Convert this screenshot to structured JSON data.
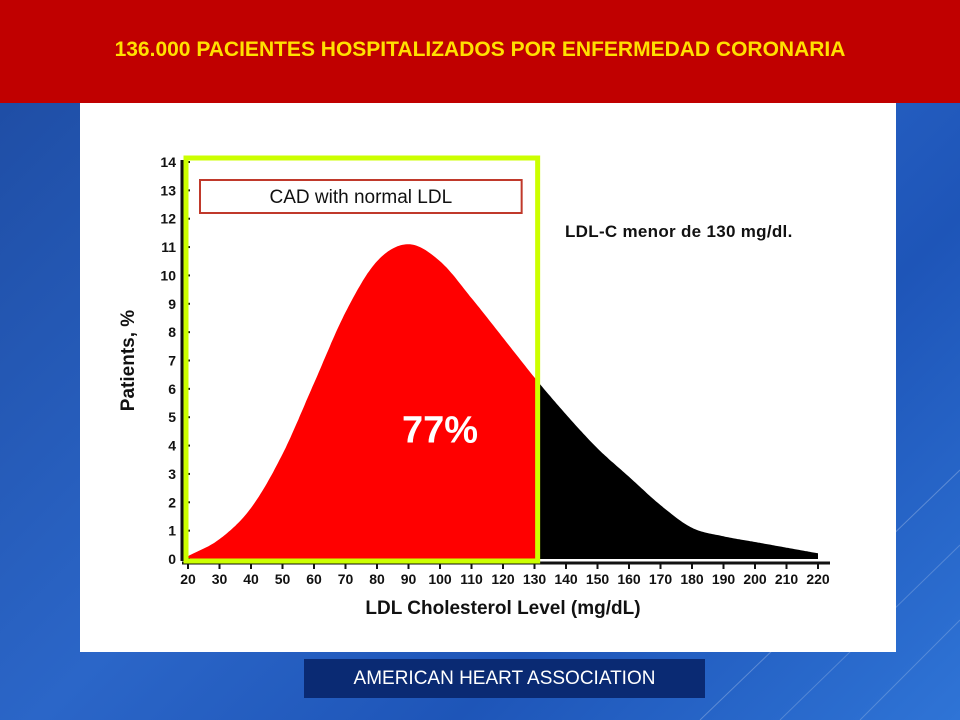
{
  "slide": {
    "header_title": "136.000 PACIENTES HOSPITALIZADOS POR ENFERMEDAD CORONARIA",
    "annotation": "LDL-C menor de 130 mg/dl.",
    "footer_label": "AMERICAN HEART ASSOCIATION",
    "colors": {
      "header_bg": "#c00000",
      "header_text": "#ffe000",
      "background": "#2b66c8",
      "footer_bg": "#0a2a73"
    }
  },
  "chart_data": {
    "type": "area",
    "title": "",
    "xlabel": "LDL Cholesterol Level (mg/dL)",
    "ylabel": "Patients, %",
    "x_ticks": [
      20,
      30,
      40,
      50,
      60,
      70,
      80,
      90,
      100,
      110,
      120,
      130,
      140,
      150,
      160,
      170,
      180,
      190,
      200,
      210,
      220
    ],
    "y_ticks": [
      0,
      1,
      2,
      3,
      4,
      5,
      6,
      7,
      8,
      9,
      10,
      11,
      12,
      13,
      14
    ],
    "xlim": [
      20,
      220
    ],
    "ylim": [
      0,
      14
    ],
    "x": [
      20,
      30,
      40,
      50,
      60,
      70,
      80,
      90,
      100,
      110,
      120,
      130,
      140,
      150,
      160,
      170,
      180,
      190,
      200,
      210,
      220
    ],
    "y": [
      0.1,
      0.7,
      1.8,
      3.7,
      6.2,
      8.7,
      10.5,
      11.1,
      10.5,
      9.2,
      7.8,
      6.4,
      5.1,
      3.9,
      2.9,
      1.9,
      1.1,
      0.8,
      0.6,
      0.4,
      0.2
    ],
    "highlight": {
      "label": "CAD with normal LDL",
      "x_range": [
        20,
        131
      ],
      "percent_label": "77%",
      "fill_color": "#ff0000",
      "border_color": "#ccff00"
    },
    "rest_fill_color": "#000000",
    "grid": false
  }
}
